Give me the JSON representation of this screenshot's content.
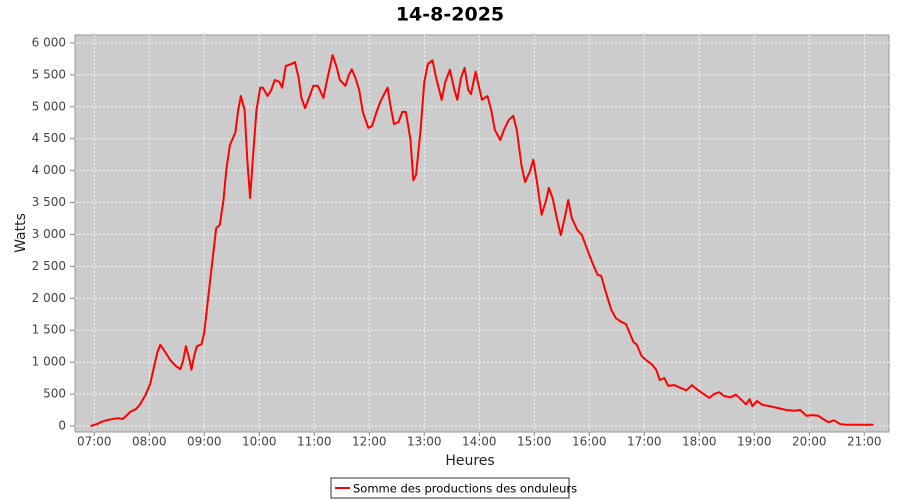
{
  "chart_data": {
    "type": "line",
    "title": "14-8-2025",
    "x_label": "Heures",
    "y_label": "Watts",
    "xlim": [
      "06:39",
      "21:27"
    ],
    "ylim": [
      -94,
      6125
    ],
    "grid": true,
    "xticks": [
      "07:00",
      "08:00",
      "09:00",
      "10:00",
      "11:00",
      "12:00",
      "13:00",
      "14:00",
      "15:00",
      "16:00",
      "17:00",
      "18:00",
      "19:00",
      "20:00",
      "21:00"
    ],
    "yticks": [
      0,
      500,
      {
        "value": 1000,
        "label": "1 000"
      },
      {
        "value": 1500,
        "label": "1 500"
      },
      {
        "value": 2000,
        "label": "2 000"
      },
      {
        "value": 2500,
        "label": "2 500"
      },
      {
        "value": 3000,
        "label": "3 000"
      },
      {
        "value": 3500,
        "label": "3 500"
      },
      {
        "value": 4000,
        "label": "4 000"
      },
      {
        "value": 4500,
        "label": "4 500"
      },
      {
        "value": 5000,
        "label": "5 000"
      },
      {
        "value": 5500,
        "label": "5 500"
      },
      {
        "value": 6000,
        "label": "6 000"
      }
    ],
    "x": [
      "06:56",
      "07:03",
      "07:07",
      "07:13",
      "07:20",
      "07:26",
      "07:31",
      "07:35",
      "07:39",
      "07:46",
      "07:50",
      "07:56",
      "08:01",
      "08:05",
      "08:09",
      "08:12",
      "08:16",
      "08:23",
      "08:29",
      "08:34",
      "08:37",
      "08:40",
      "08:44",
      "08:46",
      "08:49",
      "08:52",
      "08:57",
      "09:00",
      "09:04",
      "09:09",
      "09:13",
      "09:17",
      "09:21",
      "09:24",
      "09:28",
      "09:34",
      "09:37",
      "09:40",
      "09:44",
      "09:47",
      "09:50",
      "09:53",
      "09:57",
      "10:01",
      "10:04",
      "10:09",
      "10:13",
      "10:17",
      "10:22",
      "10:25",
      "10:29",
      "10:35",
      "10:39",
      "10:43",
      "10:46",
      "10:50",
      "10:55",
      "10:59",
      "11:04",
      "11:10",
      "11:14",
      "11:20",
      "11:24",
      "11:28",
      "11:34",
      "11:38",
      "11:41",
      "11:45",
      "11:49",
      "11:53",
      "11:59",
      "12:03",
      "12:08",
      "12:12",
      "12:16",
      "12:20",
      "12:23",
      "12:27",
      "12:32",
      "12:36",
      "12:40",
      "12:45",
      "12:48",
      "12:51",
      "12:56",
      "13:00",
      "13:04",
      "13:09",
      "13:13",
      "13:19",
      "13:23",
      "13:28",
      "13:33",
      "13:36",
      "13:40",
      "13:44",
      "13:48",
      "13:51",
      "13:56",
      "13:59",
      "14:03",
      "14:09",
      "14:13",
      "14:17",
      "14:23",
      "14:27",
      "14:32",
      "14:37",
      "14:41",
      "14:46",
      "14:50",
      "14:55",
      "14:59",
      "15:03",
      "15:08",
      "15:13",
      "15:16",
      "15:20",
      "15:25",
      "15:29",
      "15:34",
      "15:37",
      "15:41",
      "15:47",
      "15:52",
      "15:58",
      "16:03",
      "16:09",
      "16:13",
      "16:19",
      "16:24",
      "16:29",
      "16:35",
      "16:40",
      "16:44",
      "16:48",
      "16:52",
      "16:57",
      "17:02",
      "17:08",
      "17:13",
      "17:17",
      "17:22",
      "17:26",
      "17:33",
      "17:39",
      "17:46",
      "17:52",
      "17:59",
      "18:05",
      "18:11",
      "18:16",
      "18:22",
      "18:27",
      "18:34",
      "18:40",
      "18:46",
      "18:51",
      "18:55",
      "18:58",
      "19:03",
      "19:09",
      "19:17",
      "19:26",
      "19:35",
      "19:44",
      "19:50",
      "19:57",
      "20:03",
      "20:10",
      "20:15",
      "20:21",
      "20:27",
      "20:34",
      "20:40",
      "20:49",
      "21:01",
      "21:10"
    ],
    "legend_position": "bottom",
    "series": [
      {
        "name": "Somme des productions des onduleurs",
        "color": "#ff0000",
        "values": [
          0,
          30,
          60,
          90,
          110,
          120,
          110,
          160,
          220,
          270,
          340,
          490,
          660,
          910,
          1160,
          1270,
          1190,
          1030,
          940,
          890,
          1030,
          1250,
          1030,
          880,
          1100,
          1250,
          1280,
          1470,
          1970,
          2600,
          3100,
          3150,
          3540,
          4010,
          4400,
          4600,
          4950,
          5170,
          4950,
          4170,
          3570,
          4170,
          4950,
          5300,
          5300,
          5170,
          5260,
          5420,
          5390,
          5300,
          5640,
          5670,
          5700,
          5450,
          5140,
          4980,
          5170,
          5330,
          5330,
          5140,
          5420,
          5810,
          5640,
          5420,
          5330,
          5510,
          5590,
          5450,
          5260,
          4920,
          4670,
          4700,
          4920,
          5080,
          5190,
          5300,
          5030,
          4730,
          4760,
          4920,
          4920,
          4480,
          3850,
          3930,
          4640,
          5390,
          5670,
          5730,
          5450,
          5110,
          5390,
          5580,
          5260,
          5110,
          5450,
          5610,
          5260,
          5200,
          5550,
          5360,
          5110,
          5170,
          4950,
          4640,
          4480,
          4640,
          4790,
          4860,
          4640,
          4090,
          3820,
          3980,
          4170,
          3820,
          3310,
          3540,
          3730,
          3570,
          3230,
          2990,
          3310,
          3540,
          3260,
          3070,
          2990,
          2760,
          2570,
          2370,
          2350,
          2050,
          1820,
          1690,
          1630,
          1600,
          1460,
          1320,
          1270,
          1100,
          1030,
          970,
          880,
          720,
          750,
          630,
          640,
          600,
          560,
          640,
          560,
          500,
          440,
          500,
          530,
          470,
          450,
          490,
          410,
          340,
          420,
          310,
          390,
          330,
          310,
          280,
          250,
          240,
          250,
          160,
          170,
          160,
          110,
          60,
          90,
          30,
          20,
          20,
          20,
          20
        ]
      }
    ]
  }
}
